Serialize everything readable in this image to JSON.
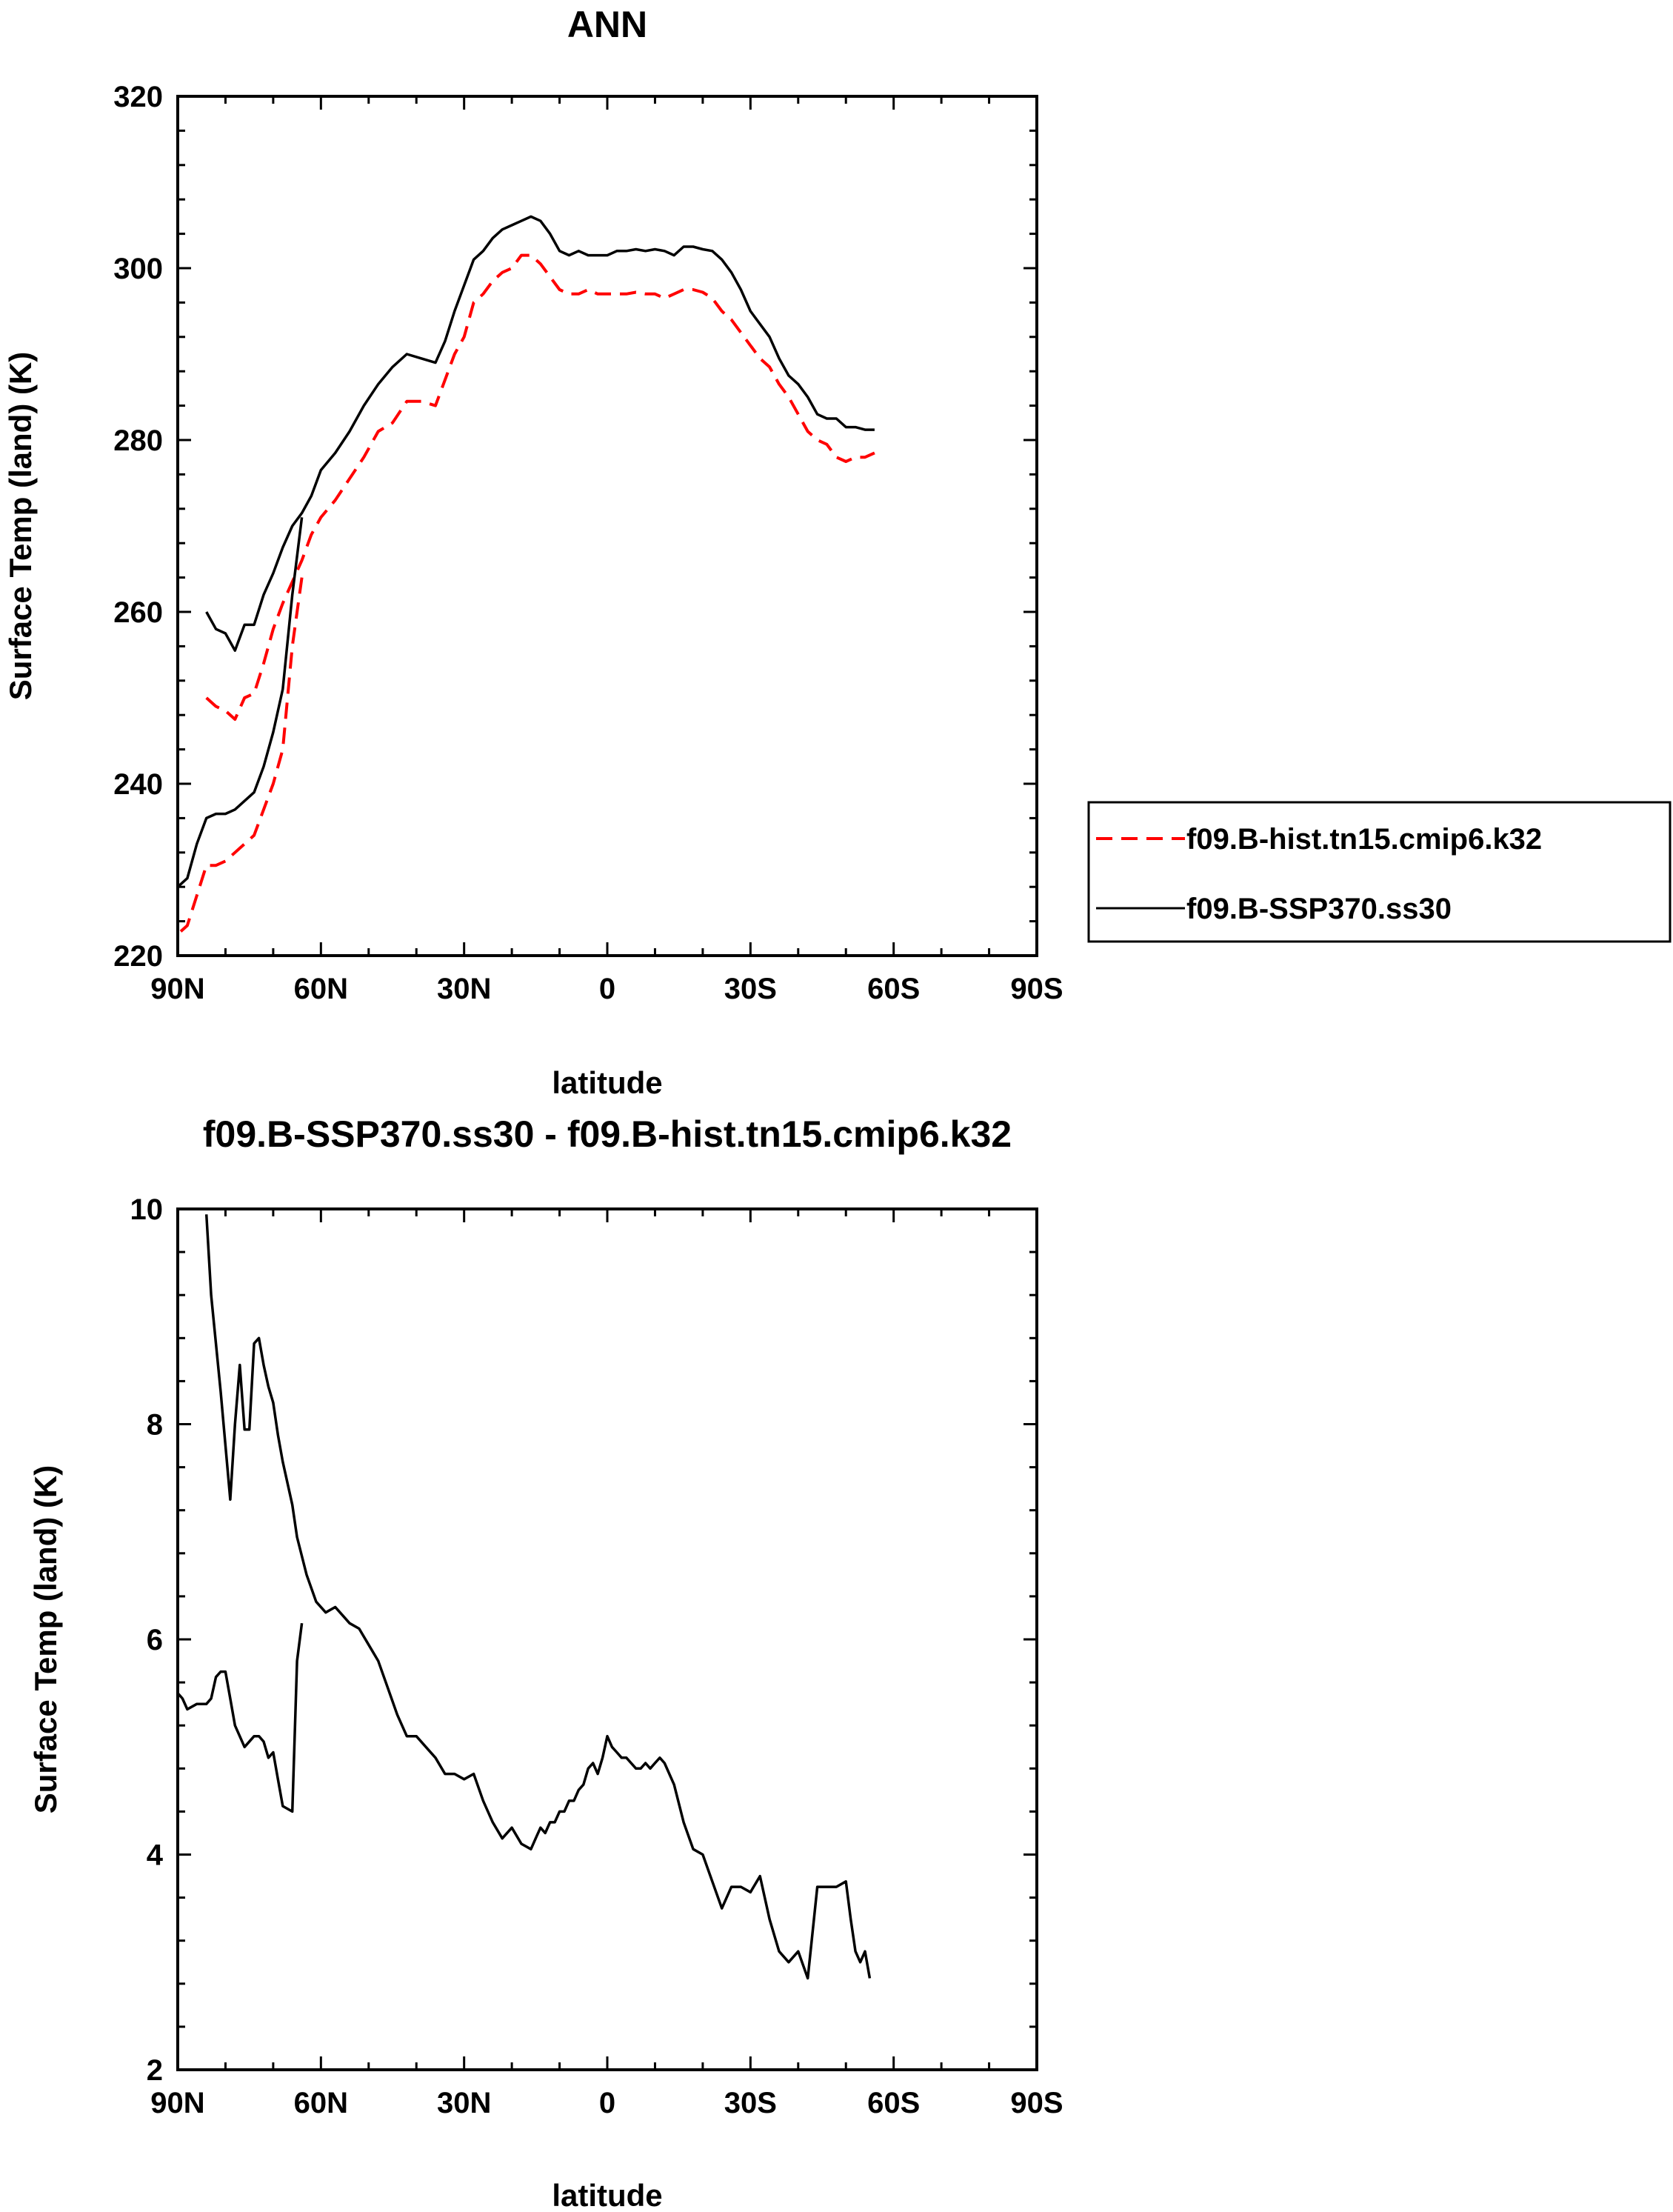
{
  "chart_data": [
    {
      "type": "line",
      "title": "ANN",
      "xlabel": "latitude",
      "ylabel": "Surface Temp (land) (K)",
      "xlim": [
        90,
        -90
      ],
      "ylim": [
        220,
        320
      ],
      "xticks": [
        90,
        60,
        30,
        0,
        -30,
        -60,
        -90
      ],
      "xtick_labels": [
        "90N",
        "60N",
        "30N",
        "0",
        "30S",
        "60S",
        "90S"
      ],
      "yticks": [
        220,
        240,
        260,
        280,
        300,
        320
      ],
      "ytick_labels": [
        "220",
        "240",
        "260",
        "280",
        "300",
        "320"
      ],
      "legend_position": "outside-right",
      "series": [
        {
          "name": "f09.B-hist.tn15.cmip6.k32",
          "color": "#ff0000",
          "dash": "dashed",
          "segments": [
            {
              "x": [
                84,
                82,
                80,
                78,
                76,
                74,
                72,
                70,
                68,
                66,
                64,
                62,
                60,
                57,
                54,
                51,
                48,
                45,
                42,
                39,
                36,
                34,
                32,
                30,
                28,
                26,
                24,
                22,
                20,
                18,
                16,
                14,
                12,
                10,
                8,
                6,
                4,
                2,
                0,
                -2,
                -4,
                -6,
                -8,
                -10,
                -12,
                -14,
                -16,
                -18,
                -20,
                -22,
                -24,
                -26,
                -28,
                -30,
                -32,
                -34,
                -36,
                -38,
                -40,
                -42,
                -44,
                -46,
                -48,
                -50,
                -52,
                -54,
                -56
              ],
              "y": [
                250,
                249,
                248.5,
                247.5,
                250,
                250.5,
                254,
                258,
                261,
                263.5,
                266,
                269,
                271,
                273,
                275.5,
                278,
                281,
                282,
                284.5,
                284.5,
                284,
                287,
                290,
                292,
                296,
                297,
                298.5,
                299.5,
                300,
                301.5,
                301.5,
                300.5,
                299,
                297.5,
                297,
                297,
                297.5,
                297,
                297,
                297,
                297,
                297.2,
                297,
                297,
                296.5,
                297,
                297.5,
                297.5,
                297.2,
                296.5,
                295,
                294,
                292.5,
                291,
                289.5,
                288.5,
                286.5,
                285,
                283,
                281,
                280,
                279.5,
                278,
                277.5,
                278,
                278,
                278.5
              ]
            },
            {
              "x": [
                64,
                66,
                68,
                70,
                72,
                74,
                76,
                78,
                80,
                82,
                84,
                86,
                88,
                90
              ],
              "y": [
                264,
                256,
                244,
                240,
                237,
                234,
                233,
                232,
                231,
                230.5,
                230.5,
                227,
                223.5,
                222.5
              ]
            }
          ]
        },
        {
          "name": "f09.B-SSP370.ss30",
          "color": "#000000",
          "dash": "solid",
          "segments": [
            {
              "x": [
                84,
                82,
                80,
                78,
                76,
                74,
                72,
                70,
                68,
                66,
                64,
                62,
                60,
                57,
                54,
                51,
                48,
                45,
                42,
                39,
                36,
                34,
                32,
                30,
                28,
                26,
                24,
                22,
                20,
                18,
                16,
                14,
                12,
                10,
                8,
                6,
                4,
                2,
                0,
                -2,
                -4,
                -6,
                -8,
                -10,
                -12,
                -14,
                -16,
                -18,
                -20,
                -22,
                -24,
                -26,
                -28,
                -30,
                -32,
                -34,
                -36,
                -38,
                -40,
                -42,
                -44,
                -46,
                -48,
                -50,
                -52,
                -54,
                -56
              ],
              "y": [
                260,
                258,
                257.5,
                255.5,
                258.5,
                258.5,
                262,
                264.5,
                267.5,
                270,
                271.5,
                273.5,
                276.5,
                278.5,
                281,
                284,
                286.5,
                288.5,
                290,
                289.5,
                289,
                291.5,
                295,
                298,
                301,
                302,
                303.5,
                304.5,
                305,
                305.5,
                306,
                305.5,
                304,
                302,
                301.5,
                302,
                301.5,
                301.5,
                301.5,
                302,
                302,
                302.2,
                302,
                302.2,
                302,
                301.5,
                302.5,
                302.5,
                302.2,
                302,
                301,
                299.5,
                297.5,
                295,
                293.5,
                292,
                289.5,
                287.5,
                286.5,
                285,
                283,
                282.5,
                282.5,
                281.5,
                281.5,
                281.2,
                281.2
              ]
            },
            {
              "x": [
                64,
                66,
                68,
                70,
                72,
                74,
                76,
                78,
                80,
                82,
                84,
                86,
                88,
                90
              ],
              "y": [
                271,
                262,
                251,
                246,
                242,
                239,
                238,
                237,
                236.5,
                236.5,
                236,
                233,
                229,
                228
              ]
            }
          ]
        }
      ]
    },
    {
      "type": "line",
      "title": "f09.B-SSP370.ss30 - f09.B-hist.tn15.cmip6.k32",
      "xlabel": "latitude",
      "ylabel": "Surface Temp (land) (K)",
      "xlim": [
        90,
        -90
      ],
      "ylim": [
        2,
        10
      ],
      "xticks": [
        90,
        60,
        30,
        0,
        -30,
        -60,
        -90
      ],
      "xtick_labels": [
        "90N",
        "60N",
        "30N",
        "0",
        "30S",
        "60S",
        "90S"
      ],
      "yticks": [
        2,
        4,
        6,
        8,
        10
      ],
      "ytick_labels": [
        "2",
        "4",
        "6",
        "8",
        "10"
      ],
      "series": [
        {
          "name": "f09.B-SSP370.ss30 - f09.B-hist.tn15.cmip6.k32",
          "color": "#000000",
          "dash": "solid",
          "segments": [
            {
              "x": [
                84,
                83,
                81,
                79,
                78,
                77,
                76,
                75,
                74,
                73,
                72,
                71,
                70,
                69,
                68,
                66,
                65,
                63,
                61,
                59,
                57,
                55,
                54,
                52,
                50,
                48,
                46,
                44,
                42,
                40,
                38,
                36,
                34,
                32,
                30,
                28,
                26,
                24,
                22,
                20,
                18,
                16,
                15,
                14,
                13,
                12,
                11,
                10,
                9,
                8,
                7,
                6,
                5,
                4,
                3,
                2,
                1,
                0,
                -1,
                -2,
                -3,
                -4,
                -5,
                -6,
                -7,
                -8,
                -9,
                -10,
                -11,
                -12,
                -14,
                -16,
                -18,
                -20,
                -22,
                -24,
                -26,
                -28,
                -30,
                -32,
                -34,
                -36,
                -38,
                -40,
                -42,
                -44,
                -46,
                -48,
                -50,
                -51,
                -52,
                -53,
                -54,
                -55
              ],
              "y": [
                9.95,
                9.2,
                8.3,
                7.3,
                8.0,
                8.55,
                7.95,
                7.95,
                8.75,
                8.8,
                8.55,
                8.35,
                8.2,
                7.9,
                7.65,
                7.25,
                6.95,
                6.6,
                6.35,
                6.25,
                6.3,
                6.2,
                6.15,
                6.1,
                5.95,
                5.8,
                5.55,
                5.3,
                5.1,
                5.1,
                5.0,
                4.9,
                4.75,
                4.75,
                4.7,
                4.75,
                4.5,
                4.3,
                4.15,
                4.25,
                4.1,
                4.05,
                4.15,
                4.25,
                4.2,
                4.3,
                4.3,
                4.4,
                4.4,
                4.5,
                4.5,
                4.6,
                4.65,
                4.8,
                4.85,
                4.75,
                4.9,
                5.1,
                5.0,
                4.95,
                4.9,
                4.9,
                4.85,
                4.8,
                4.8,
                4.85,
                4.8,
                4.85,
                4.9,
                4.85,
                4.65,
                4.3,
                4.05,
                4.0,
                3.75,
                3.5,
                3.7,
                3.7,
                3.65,
                3.8,
                3.4,
                3.1,
                3.0,
                3.1,
                2.85,
                3.7,
                3.7,
                3.7,
                3.75,
                3.4,
                3.1,
                3.0,
                3.1,
                2.85
              ]
            },
            {
              "x": [
                64,
                65,
                66,
                68,
                69,
                70,
                71,
                72,
                73,
                74,
                76,
                78,
                79,
                80,
                81,
                82,
                83,
                84,
                86,
                88,
                89,
                90
              ],
              "y": [
                6.15,
                5.8,
                4.4,
                4.45,
                4.7,
                4.95,
                4.9,
                5.05,
                5.1,
                5.1,
                5.0,
                5.2,
                5.45,
                5.7,
                5.7,
                5.65,
                5.45,
                5.4,
                5.4,
                5.35,
                5.45,
                5.5
              ]
            }
          ]
        }
      ]
    }
  ]
}
